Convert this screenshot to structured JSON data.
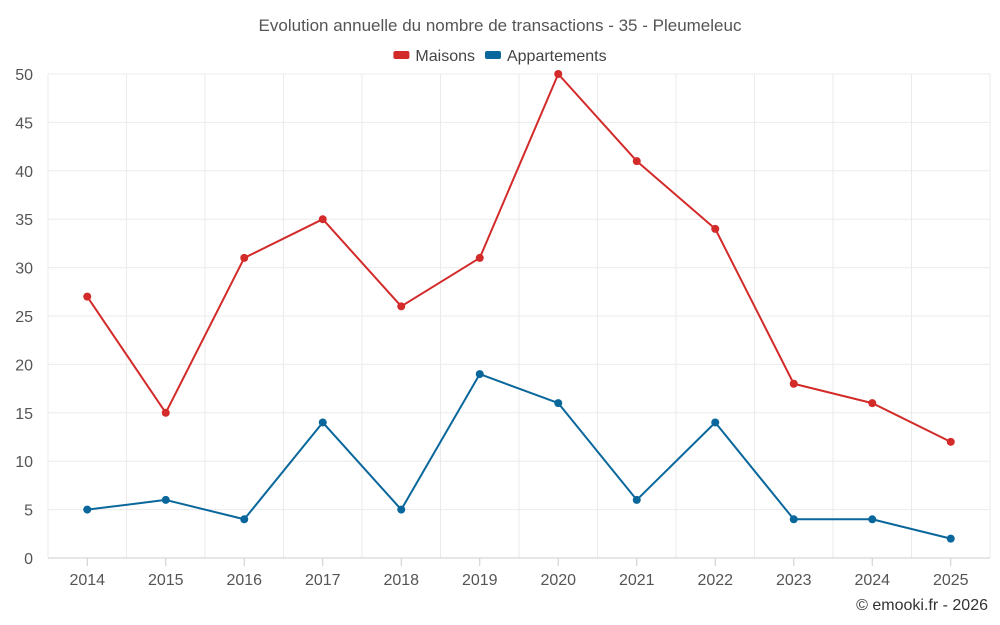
{
  "chart_data": {
    "type": "line",
    "title": "Evolution annuelle du nombre de transactions - 35 - Pleumeleuc",
    "categories": [
      "2014",
      "2015",
      "2016",
      "2017",
      "2018",
      "2019",
      "2020",
      "2021",
      "2022",
      "2023",
      "2024",
      "2025"
    ],
    "series": [
      {
        "name": "Maisons",
        "color": "#d32a2a",
        "values": [
          27,
          15,
          31,
          35,
          26,
          31,
          50,
          41,
          34,
          18,
          16,
          12
        ]
      },
      {
        "name": "Appartements",
        "color": "#0a679c",
        "values": [
          5,
          6,
          4,
          14,
          5,
          19,
          16,
          6,
          14,
          4,
          4,
          2
        ]
      }
    ],
    "ylim": [
      0,
      50
    ],
    "yticks": [
      0,
      5,
      10,
      15,
      20,
      25,
      30,
      35,
      40,
      45,
      50
    ],
    "xlabel": "",
    "ylabel": "",
    "grid": true,
    "legend_position": "top-center"
  },
  "credit": "© emooki.fr - 2026"
}
